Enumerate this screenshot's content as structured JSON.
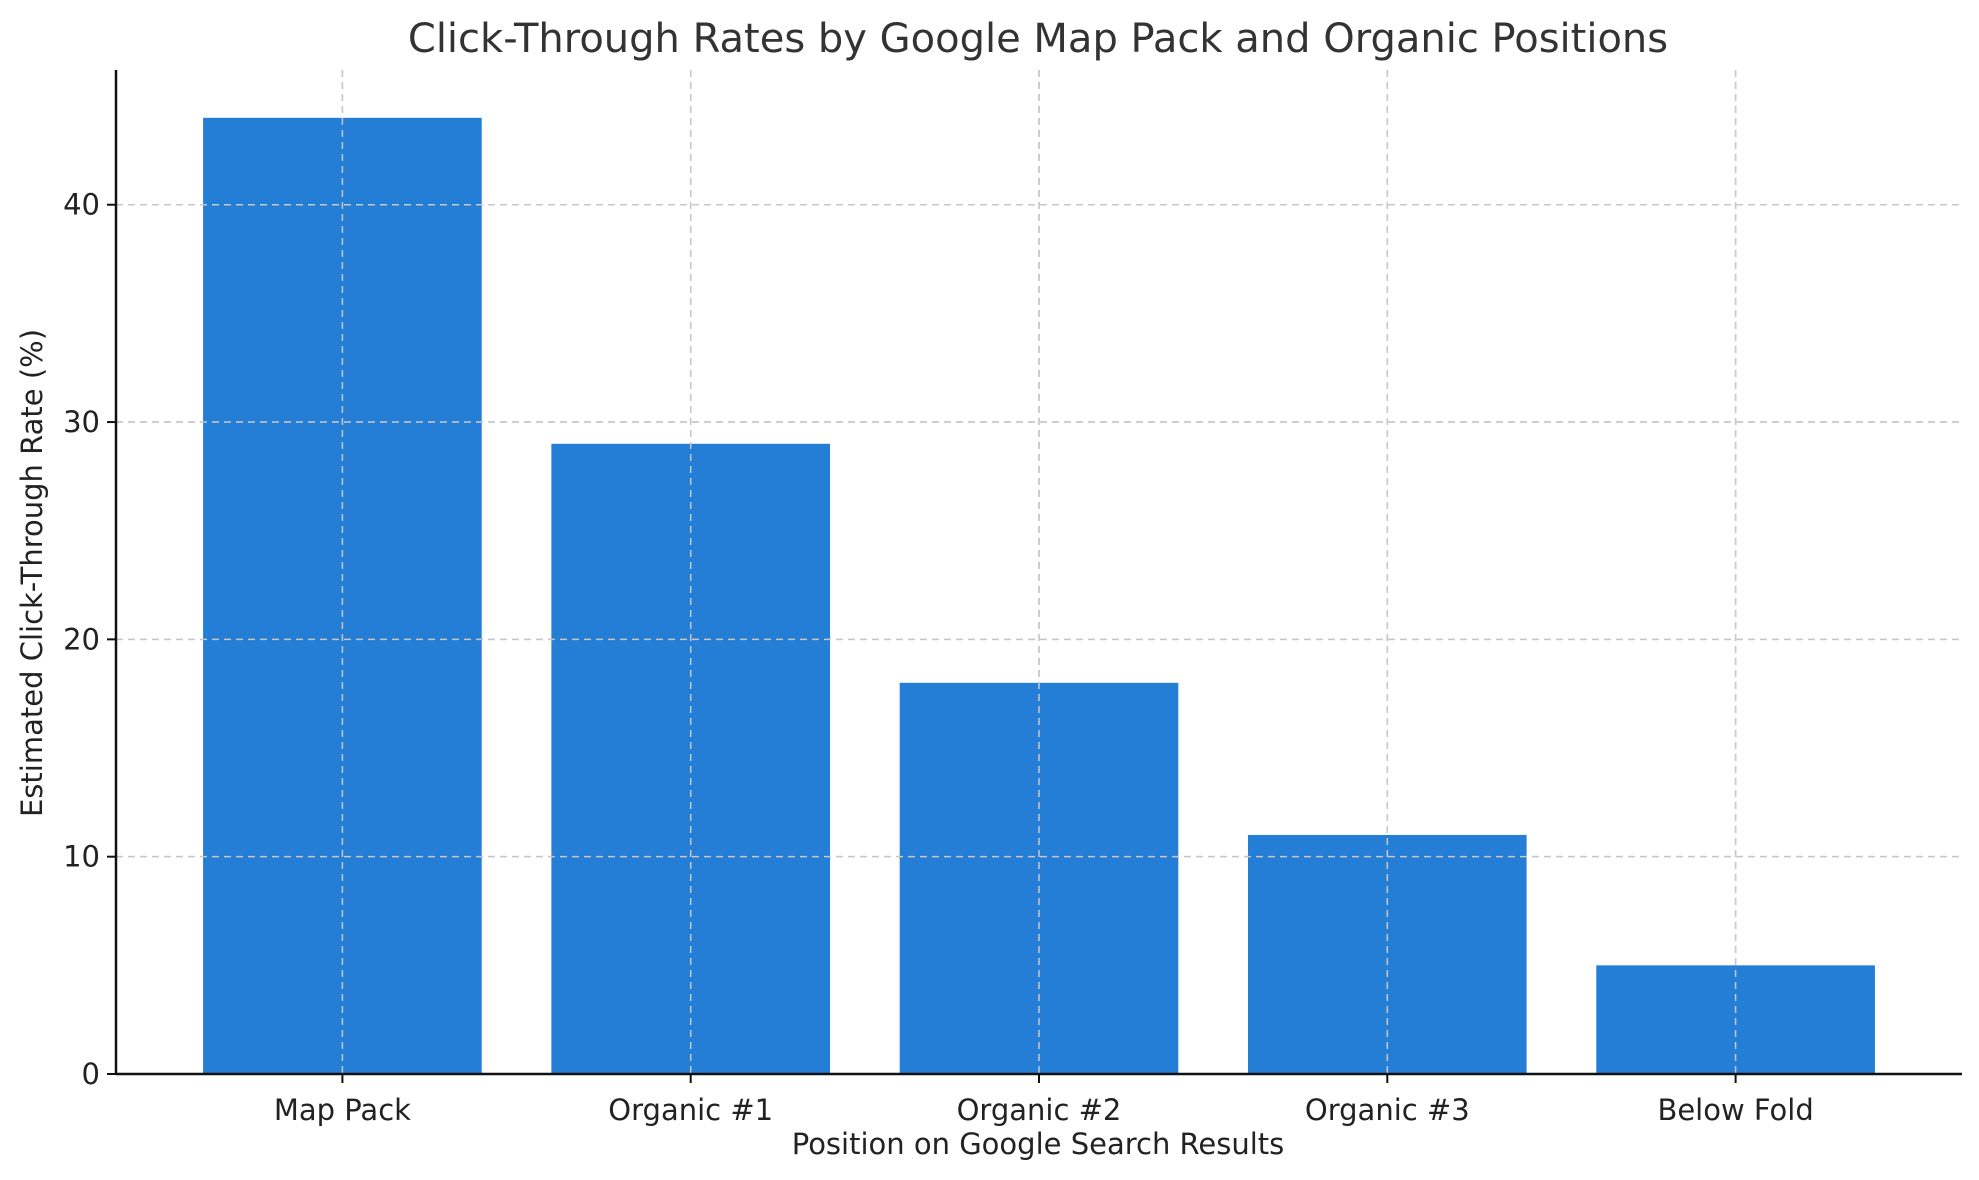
{
  "chart_data": {
    "type": "bar",
    "title": "Click-Through Rates by Google Map Pack and Organic Positions",
    "xlabel": "Position on Google Search Results",
    "ylabel": "Estimated Click-Through Rate (%)",
    "categories": [
      "Map Pack",
      "Organic #1",
      "Organic #2",
      "Organic #3",
      "Below Fold"
    ],
    "values": [
      44,
      29,
      18,
      11,
      5
    ],
    "ylim": [
      0,
      46.2
    ],
    "yticks": [
      0,
      10,
      20,
      30,
      40
    ],
    "grid": true,
    "bar_color": "#257ed6"
  }
}
